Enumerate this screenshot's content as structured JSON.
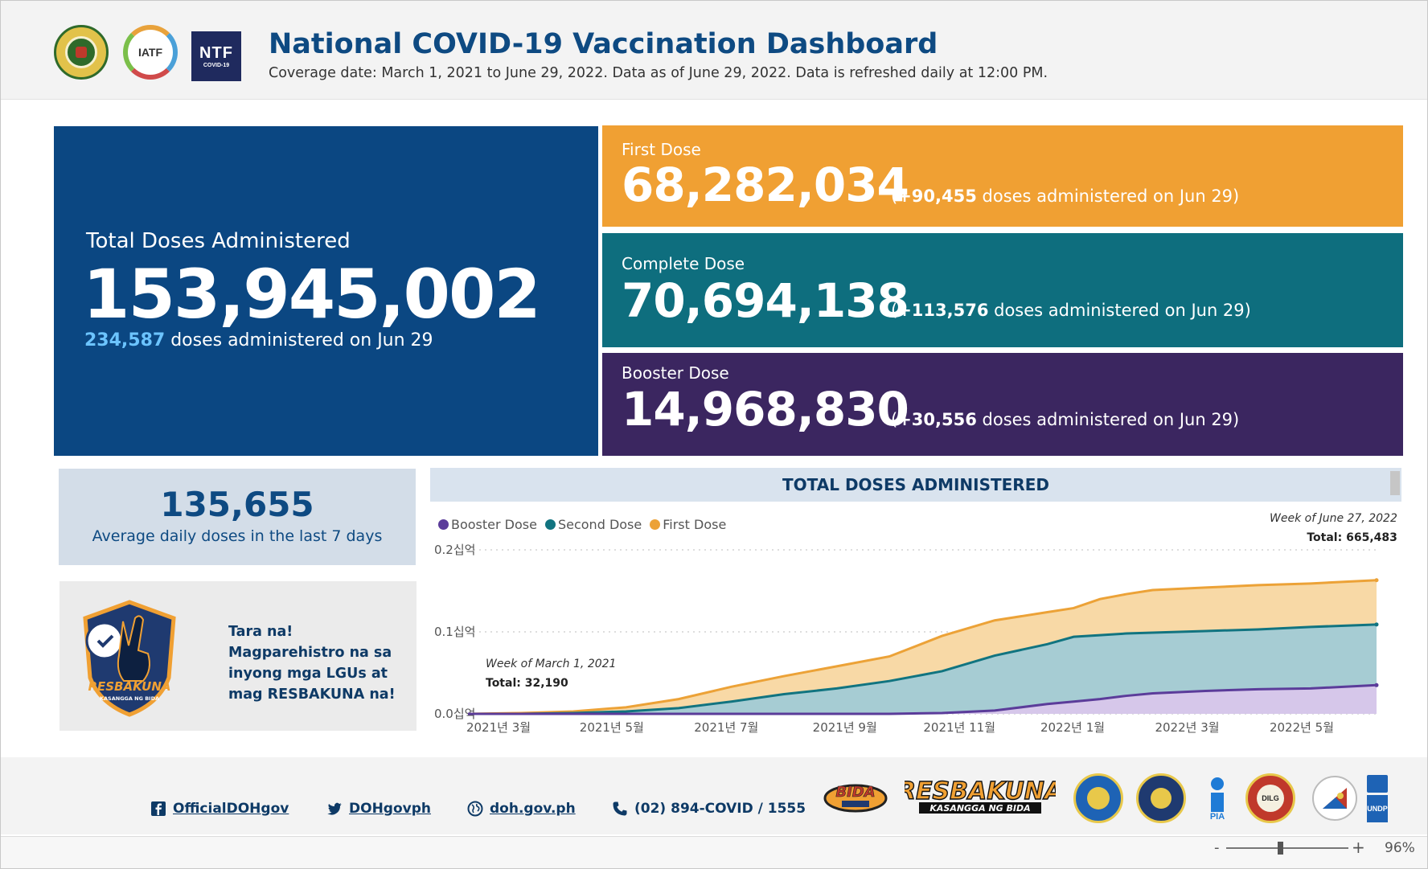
{
  "header": {
    "title": "National COVID-19 Vaccination Dashboard",
    "subtitle": "Coverage date: March 1, 2021 to June 29, 2022. Data as of June 29, 2022. Data is refreshed daily at 12:00 PM.",
    "logo_iatf": "IATF",
    "logo_ntf": "NTF",
    "logo_ntf_sub": "COVID-19"
  },
  "total": {
    "label": "Total Doses Administered",
    "value": "153,945,002",
    "daily_value": "234,587",
    "daily_text": " doses administered on Jun 29"
  },
  "first_dose": {
    "label": "First Dose",
    "value": "68,282,034",
    "delta_open": "(",
    "delta_value": "+90,455",
    "delta_text": " doses administered on Jun 29)"
  },
  "complete_dose": {
    "label": "Complete Dose",
    "value": "70,694,138",
    "delta_open": "(",
    "delta_value": "+113,576",
    "delta_text": " doses administered on Jun 29)"
  },
  "booster_dose": {
    "label": "Booster Dose",
    "value": "14,968,830",
    "delta_open": "(",
    "delta_value": "+30,556",
    "delta_text": " doses administered on Jun 29)"
  },
  "average": {
    "value": "135,655",
    "caption": "Average daily doses in the last 7 days"
  },
  "promo": {
    "text": "Tara na! Magparehistro na sa inyong mga LGUs at mag RESBAKUNA na!",
    "badge_text": "RESBAKUNA",
    "badge_sub": "KASANGGA NG BIDA"
  },
  "chart_data": {
    "type": "area",
    "title": "TOTAL DOSES ADMINISTERED",
    "legend": [
      "Booster Dose",
      "Second Dose",
      "First Dose"
    ],
    "colors": {
      "booster": "#5b3c9a",
      "second": "#117480",
      "first": "#eca237",
      "booster_fill": "#d6c7ea",
      "second_fill": "#a6ccd3",
      "first_fill": "#f8d9a6"
    },
    "y_ticks": [
      "0.0십억",
      "0.1십억",
      "0.2십억"
    ],
    "y_tick_values": [
      0,
      0.1,
      0.2
    ],
    "ylim": [
      0,
      0.2
    ],
    "x_ticks": [
      "2021년 3월",
      "2021년 5월",
      "2021년 7월",
      "2021년 9월",
      "2021년 11월",
      "2022년 1월",
      "2022년 3월",
      "2022년 5월"
    ],
    "x_tick_values": [
      0,
      8.6,
      17.3,
      26.3,
      35,
      43.6,
      52.3,
      61
    ],
    "x_range": [
      0,
      69
    ],
    "x": [
      0,
      4,
      8,
      12,
      16,
      20,
      24,
      28,
      32,
      36,
      40,
      44,
      46,
      48,
      50,
      52,
      56,
      60,
      64,
      69
    ],
    "series": [
      {
        "name": "First Dose",
        "values": [
          0,
          0.001,
          0.003,
          0.008,
          0.018,
          0.033,
          0.046,
          0.058,
          0.07,
          0.095,
          0.114,
          0.124,
          0.129,
          0.14,
          0.146,
          0.151,
          0.154,
          0.157,
          0.159,
          0.163
        ]
      },
      {
        "name": "Second Dose",
        "values": [
          0,
          0,
          0.001,
          0.003,
          0.007,
          0.015,
          0.024,
          0.031,
          0.04,
          0.052,
          0.071,
          0.085,
          0.094,
          0.096,
          0.098,
          0.099,
          0.101,
          0.103,
          0.106,
          0.109
        ]
      },
      {
        "name": "Booster Dose",
        "values": [
          0,
          0,
          0,
          0,
          0,
          0,
          0,
          0,
          0,
          0.001,
          0.004,
          0.012,
          0.015,
          0.018,
          0.022,
          0.025,
          0.028,
          0.03,
          0.031,
          0.035
        ]
      }
    ],
    "annotations": [
      {
        "title": "Week of March 1, 2021",
        "label": "Total: ",
        "value": "32,190"
      },
      {
        "title": "Week of June 27, 2022",
        "label": "Total: ",
        "value": "665,483"
      }
    ]
  },
  "footer": {
    "facebook": "OfficialDOHgov",
    "twitter": "DOHgovph",
    "website": "doh.gov.ph",
    "phone": "(02) 894-COVID / 1555",
    "logos": [
      "BIDA",
      "RESBAKUNA",
      "KASANGGA NG BIDA",
      "DILG",
      "PIA",
      "UNDP"
    ]
  },
  "zoom": {
    "minus": "-",
    "plus": "+",
    "value": "96%",
    "level": 0.44
  }
}
